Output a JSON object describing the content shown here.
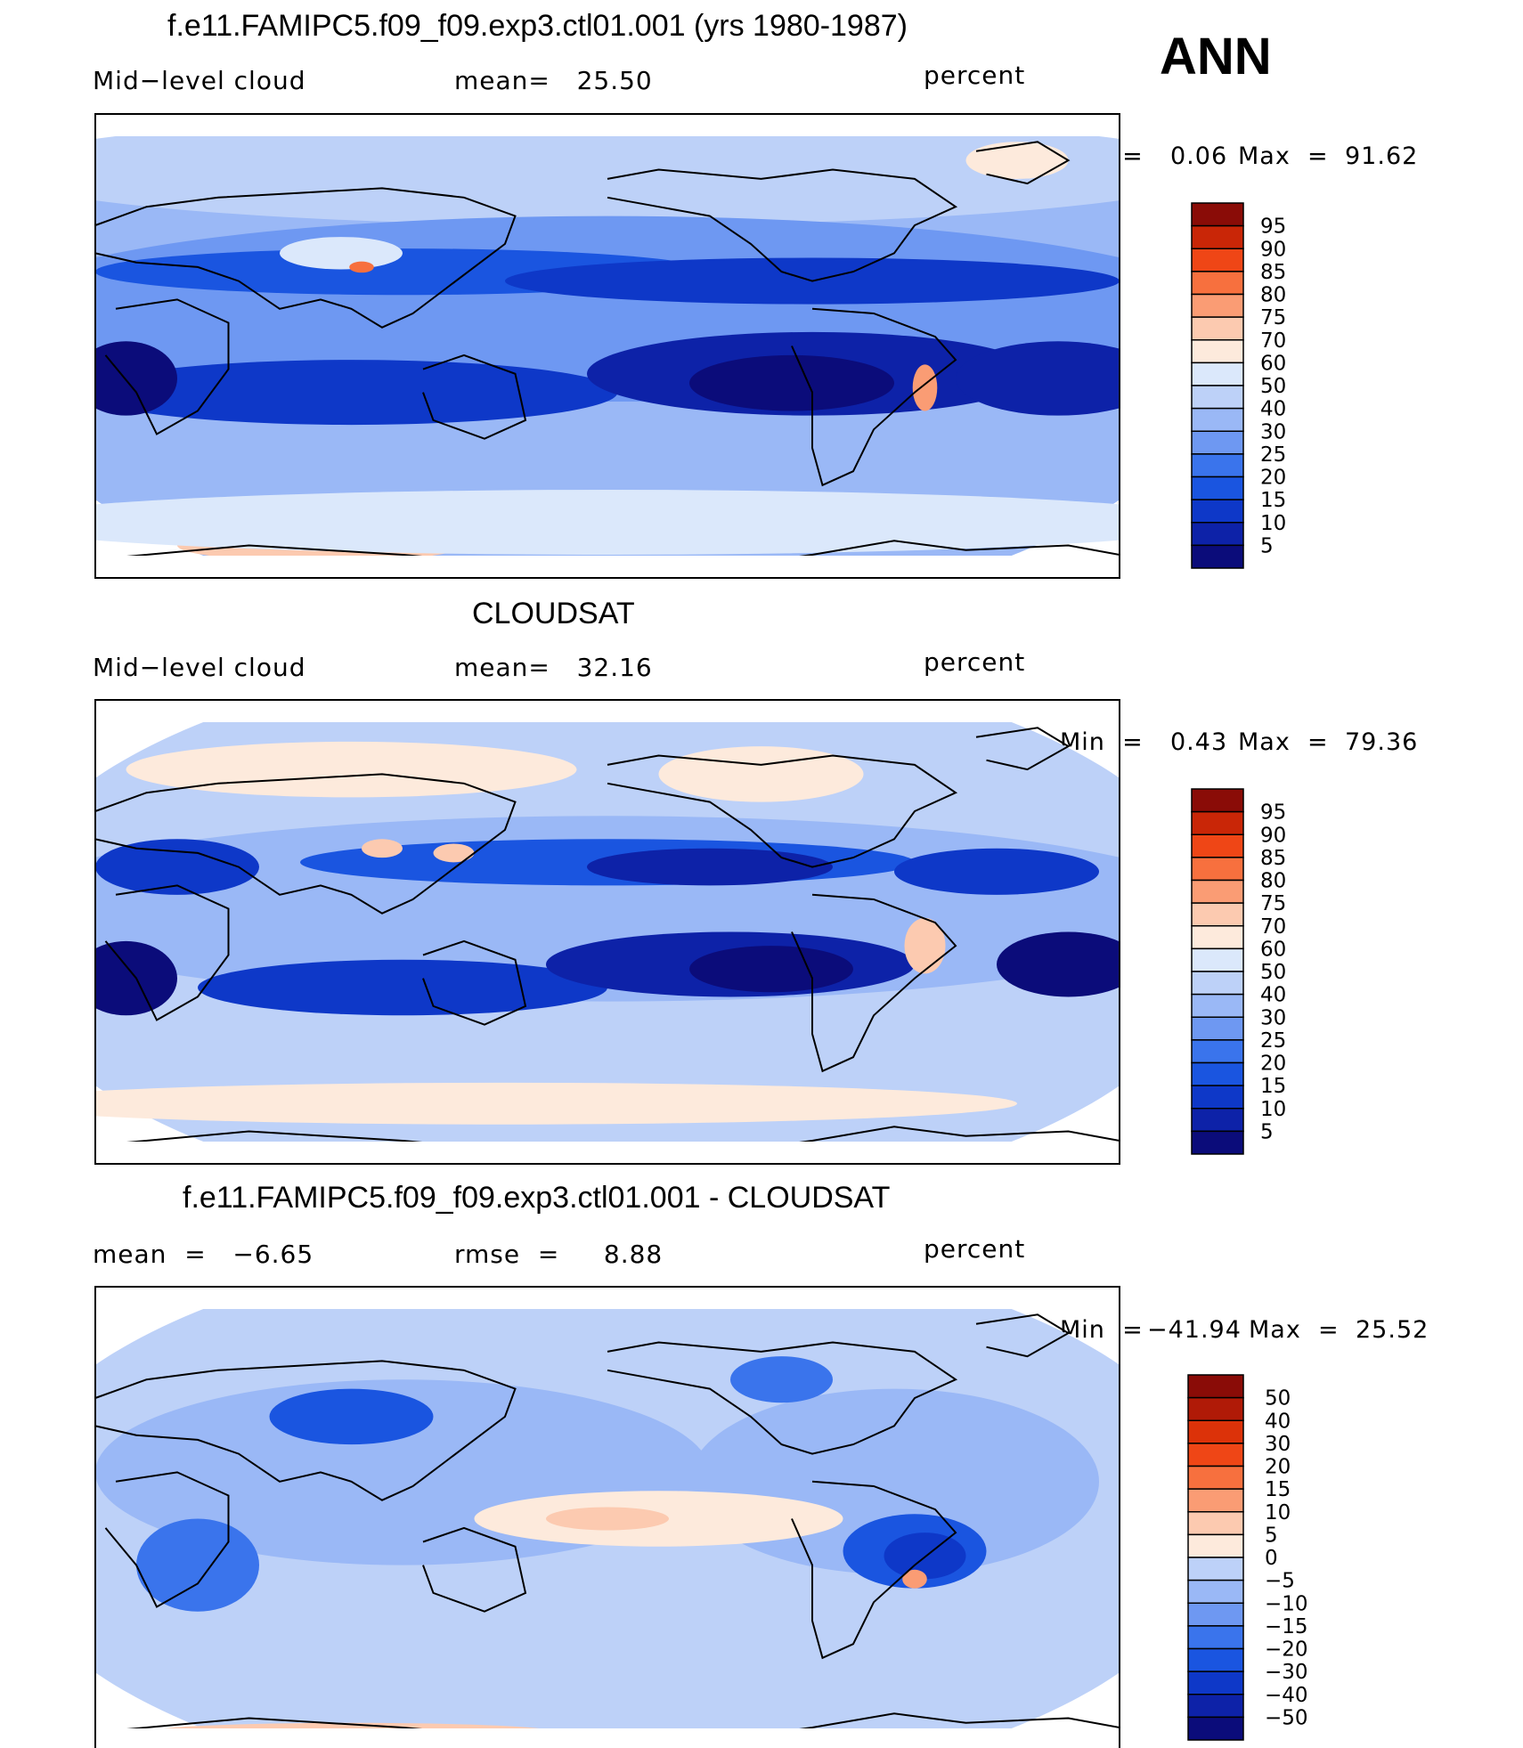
{
  "season": "ANN",
  "chart_data": [
    {
      "type": "heatmap",
      "title": "f.e11.FAMIPC5.f09_f09.exp3.ctl01.001 (yrs 1980-1987)",
      "left_label": "Mid−level cloud",
      "center_label": "mean=   25.50",
      "units": "percent",
      "mean": 25.5,
      "min": 0.06,
      "max": 91.62,
      "minmax_text": {
        "min_label": "Min  =",
        "min_value": "0.06",
        "max_label": "Max  =",
        "max_value": "91.62"
      },
      "contour_levels": [
        5,
        10,
        15,
        20,
        25,
        30,
        40,
        50,
        60,
        70,
        75,
        80,
        85,
        90,
        95
      ],
      "colorbar_labels": [
        "95",
        "90",
        "85",
        "80",
        "75",
        "70",
        "60",
        "50",
        "40",
        "30",
        "25",
        "20",
        "15",
        "10",
        "5"
      ],
      "colors": [
        "#0b0c7a",
        "#0d22a8",
        "#0e38c8",
        "#1a55e0",
        "#3a74ec",
        "#6e98f2",
        "#9ab8f6",
        "#bdd1f8",
        "#dbe8fb",
        "#fdeadc",
        "#fccab0",
        "#fa9c74",
        "#f7703e",
        "#ef4616",
        "#c92607",
        "#8a0c07"
      ]
    },
    {
      "type": "heatmap",
      "title": "CLOUDSAT",
      "left_label": "Mid−level cloud",
      "center_label": "mean=   32.16",
      "units": "percent",
      "mean": 32.16,
      "min": 0.43,
      "max": 79.36,
      "minmax_text": {
        "min_label": "Min  =",
        "min_value": "0.43",
        "max_label": "Max  =",
        "max_value": "79.36"
      },
      "contour_levels": [
        5,
        10,
        15,
        20,
        25,
        30,
        40,
        50,
        60,
        70,
        75,
        80,
        85,
        90,
        95
      ],
      "colorbar_labels": [
        "95",
        "90",
        "85",
        "80",
        "75",
        "70",
        "60",
        "50",
        "40",
        "30",
        "25",
        "20",
        "15",
        "10",
        "5"
      ],
      "colors": [
        "#0b0c7a",
        "#0d22a8",
        "#0e38c8",
        "#1a55e0",
        "#3a74ec",
        "#6e98f2",
        "#9ab8f6",
        "#bdd1f8",
        "#dbe8fb",
        "#fdeadc",
        "#fccab0",
        "#fa9c74",
        "#f7703e",
        "#ef4616",
        "#c92607",
        "#8a0c07"
      ]
    },
    {
      "type": "heatmap",
      "title": "f.e11.FAMIPC5.f09_f09.exp3.ctl01.001 - CLOUDSAT",
      "left_label": "mean  =   −6.65",
      "center_label": "rmse  =     8.88",
      "units": "percent",
      "mean": -6.65,
      "rmse": 8.88,
      "min": -41.94,
      "max": 25.52,
      "minmax_text": {
        "min_label": "Min  =",
        "min_value": "−41.94",
        "max_label": "Max  =",
        "max_value": "25.52"
      },
      "contour_levels": [
        -50,
        -40,
        -30,
        -20,
        -15,
        -10,
        -5,
        0,
        5,
        10,
        15,
        20,
        30,
        40,
        50
      ],
      "colorbar_labels": [
        "50",
        "40",
        "30",
        "20",
        "15",
        "10",
        "5",
        "0",
        "−5",
        "−10",
        "−15",
        "−20",
        "−30",
        "−40",
        "−50"
      ],
      "colors": [
        "#0b0c7a",
        "#0d22a8",
        "#0e38c8",
        "#1a55e0",
        "#3a74ec",
        "#6e98f2",
        "#9ab8f6",
        "#bdd1f8",
        "#fdeadc",
        "#fccab0",
        "#fa9c74",
        "#f7703e",
        "#ef4616",
        "#dc3209",
        "#b01a07",
        "#8a0c07"
      ]
    }
  ]
}
